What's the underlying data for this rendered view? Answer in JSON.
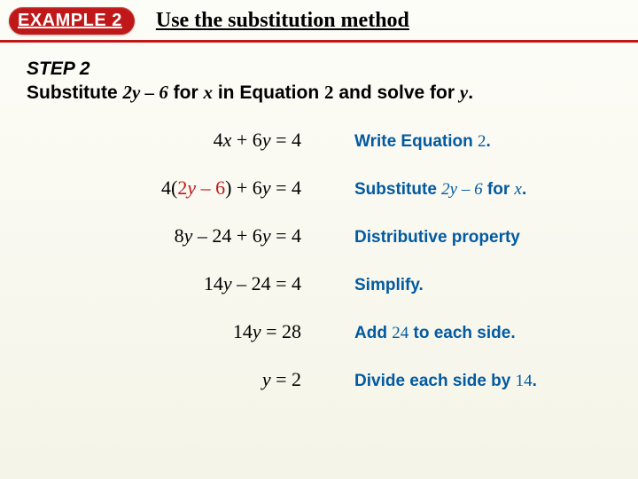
{
  "header": {
    "badge": "EXAMPLE 2",
    "title": "Use the substitution method",
    "badge_bg": "#c01818",
    "badge_fg": "#ffffff",
    "underline_color": "#c01818"
  },
  "step": {
    "label": "STEP 2",
    "text_prefix": "Substitute ",
    "expr": "2y – 6",
    "mid1": " for ",
    "var": "x",
    "mid2": " in Equation ",
    "eqnum": "2",
    "mid3": " and solve for ",
    "var2": "y",
    "suffix": "."
  },
  "rows": [
    {
      "eq": {
        "pre": "4",
        "v1": "x",
        "mid": " + 6",
        "v2": "y",
        "post": " = 4"
      },
      "reason": {
        "t1": "Write Equation ",
        "n": "2",
        "t2": "."
      }
    },
    {
      "eq": {
        "pre": "4(",
        "sub": "2y – 6",
        "mid": ") + 6",
        "v2": "y",
        "post": " = 4"
      },
      "reason": {
        "t1": "Substitute ",
        "expr": "2y – 6",
        "t2": " for ",
        "var": "x",
        "t3": "."
      }
    },
    {
      "eq": {
        "pre": "8",
        "v1": "y",
        "mid": " – 24 + 6",
        "v2": "y",
        "post": " = 4"
      },
      "reason": {
        "t1": "Distributive property"
      }
    },
    {
      "eq": {
        "pre": "14",
        "v1": "y",
        "mid": " – 24 ",
        "post": " = 4"
      },
      "reason": {
        "t1": "Simplify."
      }
    },
    {
      "eq": {
        "pre": "14",
        "v1": "y",
        "post": " = 28"
      },
      "reason": {
        "t1": "Add ",
        "n": "24",
        "t2": " to each side."
      }
    },
    {
      "eq": {
        "v1": "y",
        "post": " = 2"
      },
      "reason": {
        "t1": "Divide each side by ",
        "n": "14",
        "t2": "."
      }
    }
  ],
  "colors": {
    "reason_text": "#025aa0",
    "substitution": "#c01818",
    "body_text": "#000000",
    "background_top": "#fdfdf8",
    "background_bottom": "#f5f4e8"
  },
  "fonts": {
    "sans": "Arial",
    "serif": "Times New Roman",
    "header_title_size": 24,
    "step_size": 21,
    "eq_size": 22,
    "reason_size": 19
  }
}
